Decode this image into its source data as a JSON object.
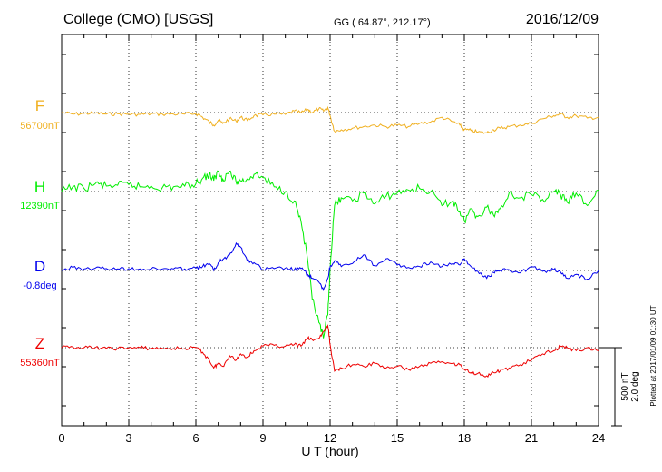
{
  "header": {
    "station": "College (CMO)  [USGS]",
    "coords": "GG ( 64.87°, 212.17°)",
    "date": "2016/12/09"
  },
  "plotted_note": "Plotted at 2017/01/09 01:30 UT",
  "scale": {
    "nt": "500 nT",
    "deg": "2.0 deg"
  },
  "chart_data": {
    "type": "line",
    "xlabel": "U T (hour)",
    "xlim": [
      0,
      24
    ],
    "xticks": [
      0,
      3,
      6,
      9,
      12,
      15,
      18,
      21,
      24
    ],
    "grid": true,
    "series": [
      {
        "name": "F",
        "baseline_label": "56700nT",
        "color": "#f0b020",
        "x": [
          0,
          0.5,
          1,
          1.5,
          2,
          2.5,
          3,
          3.5,
          4,
          4.5,
          5,
          5.5,
          6,
          6.3,
          6.6,
          6.8,
          7,
          7.2,
          7.5,
          7.8,
          8,
          8.3,
          8.6,
          9,
          9.5,
          10,
          10.4,
          10.7,
          11,
          11.2,
          11.5,
          11.7,
          11.9,
          12,
          12.2,
          12.5,
          13,
          13.5,
          14,
          14.5,
          15,
          15.5,
          16,
          16.5,
          17,
          17.5,
          17.8,
          18,
          18.3,
          18.6,
          19,
          19.3,
          19.6,
          20,
          20.5,
          21,
          21.5,
          22,
          22.3,
          22.6,
          23,
          23.5,
          24
        ],
        "y": [
          56720,
          56710,
          56714,
          56716,
          56710,
          56712,
          56710,
          56708,
          56712,
          56710,
          56710,
          56710,
          56714,
          56690,
          56660,
          56640,
          56670,
          56650,
          56680,
          56665,
          56690,
          56670,
          56700,
          56705,
          56710,
          56708,
          56730,
          56718,
          56740,
          56720,
          56745,
          56730,
          56752,
          56700,
          56600,
          56610,
          56620,
          56630,
          56640,
          56630,
          56640,
          56630,
          56650,
          56660,
          56690,
          56660,
          56640,
          56610,
          56605,
          56595,
          56590,
          56610,
          56620,
          56630,
          56640,
          56650,
          56680,
          56700,
          56710,
          56690,
          56700,
          56685,
          56690
        ]
      },
      {
        "name": "H",
        "baseline_label": "12390nT",
        "color": "#00ee00",
        "x": [
          0,
          0.5,
          1,
          1.5,
          2,
          2.5,
          3,
          3.5,
          4,
          4.5,
          5,
          5.5,
          6,
          6.3,
          6.6,
          6.8,
          7,
          7.2,
          7.5,
          7.8,
          8,
          8.3,
          8.6,
          9,
          9.5,
          10,
          10.4,
          10.7,
          11,
          11.2,
          11.5,
          11.7,
          11.9,
          12,
          12.2,
          12.5,
          13,
          13.5,
          14,
          14.5,
          15,
          15.5,
          16,
          16.5,
          17,
          17.5,
          17.8,
          18,
          18.3,
          18.6,
          19,
          19.3,
          19.6,
          20,
          20.5,
          21,
          21.5,
          22,
          22.3,
          22.6,
          23,
          23.5,
          24
        ],
        "y": [
          12390,
          12420,
          12410,
          12440,
          12425,
          12430,
          12435,
          12420,
          12425,
          12415,
          12420,
          12425,
          12440,
          12475,
          12500,
          12460,
          12520,
          12470,
          12520,
          12450,
          12460,
          12470,
          12500,
          12480,
          12420,
          12390,
          12330,
          12200,
          11950,
          11700,
          11550,
          11450,
          11600,
          11900,
          12300,
          12350,
          12330,
          12380,
          12310,
          12360,
          12380,
          12400,
          12410,
          12390,
          12300,
          12330,
          12260,
          12200,
          12280,
          12230,
          12290,
          12240,
          12280,
          12380,
          12350,
          12370,
          12340,
          12390,
          12370,
          12320,
          12380,
          12300,
          12400
        ]
      },
      {
        "name": "D",
        "baseline_label": "-0.8deg",
        "color": "#0000ee",
        "x": [
          0,
          0.5,
          1,
          1.5,
          2,
          2.5,
          3,
          3.5,
          4,
          4.5,
          5,
          5.5,
          6,
          6.3,
          6.6,
          6.8,
          7,
          7.2,
          7.5,
          7.8,
          8,
          8.3,
          8.6,
          9,
          9.5,
          10,
          10.4,
          10.7,
          11,
          11.2,
          11.5,
          11.7,
          11.9,
          12,
          12.2,
          12.5,
          13,
          13.5,
          14,
          14.5,
          15,
          15.5,
          16,
          16.5,
          17,
          17.5,
          17.8,
          18,
          18.3,
          18.6,
          19,
          19.3,
          19.6,
          20,
          20.5,
          21,
          21.5,
          22,
          22.3,
          22.6,
          23,
          23.5,
          24
        ],
        "y": [
          -0.8,
          -0.72,
          -0.76,
          -0.74,
          -0.75,
          -0.76,
          -0.75,
          -0.76,
          -0.76,
          -0.76,
          -0.76,
          -0.76,
          -0.74,
          -0.7,
          -0.62,
          -0.8,
          -0.6,
          -0.52,
          -0.4,
          -0.1,
          -0.2,
          -0.55,
          -0.6,
          -0.78,
          -0.75,
          -0.74,
          -0.78,
          -0.75,
          -0.9,
          -1.0,
          -1.1,
          -1.3,
          -1.0,
          -0.7,
          -0.55,
          -0.7,
          -0.62,
          -0.4,
          -0.68,
          -0.5,
          -0.66,
          -0.72,
          -0.7,
          -0.58,
          -0.7,
          -0.62,
          -0.66,
          -0.5,
          -0.7,
          -0.82,
          -1.0,
          -0.85,
          -0.8,
          -0.78,
          -0.86,
          -0.7,
          -0.82,
          -0.78,
          -0.84,
          -1.0,
          -0.9,
          -1.02,
          -0.8
        ]
      },
      {
        "name": "Z",
        "baseline_label": "55360nT",
        "color": "#ee0000",
        "x": [
          0,
          0.5,
          1,
          1.5,
          2,
          2.5,
          3,
          3.5,
          4,
          4.5,
          5,
          5.5,
          6,
          6.3,
          6.6,
          6.8,
          7,
          7.2,
          7.5,
          7.8,
          8,
          8.3,
          8.6,
          9,
          9.5,
          10,
          10.4,
          10.7,
          11,
          11.2,
          11.5,
          11.7,
          11.9,
          12,
          12.2,
          12.5,
          13,
          13.5,
          14,
          14.5,
          15,
          15.5,
          16,
          16.5,
          17,
          17.5,
          17.8,
          18,
          18.3,
          18.6,
          19,
          19.3,
          19.6,
          20,
          20.5,
          21,
          21.5,
          22,
          22.3,
          22.6,
          23,
          23.5,
          24
        ],
        "y": [
          55380,
          55385,
          55380,
          55380,
          55375,
          55375,
          55378,
          55380,
          55375,
          55375,
          55375,
          55375,
          55380,
          55350,
          55300,
          55250,
          55280,
          55260,
          55330,
          55300,
          55340,
          55320,
          55360,
          55390,
          55395,
          55390,
          55400,
          55390,
          55440,
          55430,
          55440,
          55480,
          55520,
          55400,
          55230,
          55250,
          55270,
          55260,
          55280,
          55250,
          55260,
          55240,
          55260,
          55280,
          55290,
          55280,
          55270,
          55240,
          55220,
          55215,
          55200,
          55220,
          55230,
          55250,
          55270,
          55300,
          55340,
          55360,
          55390,
          55380,
          55360,
          55380,
          55360
        ]
      }
    ]
  }
}
